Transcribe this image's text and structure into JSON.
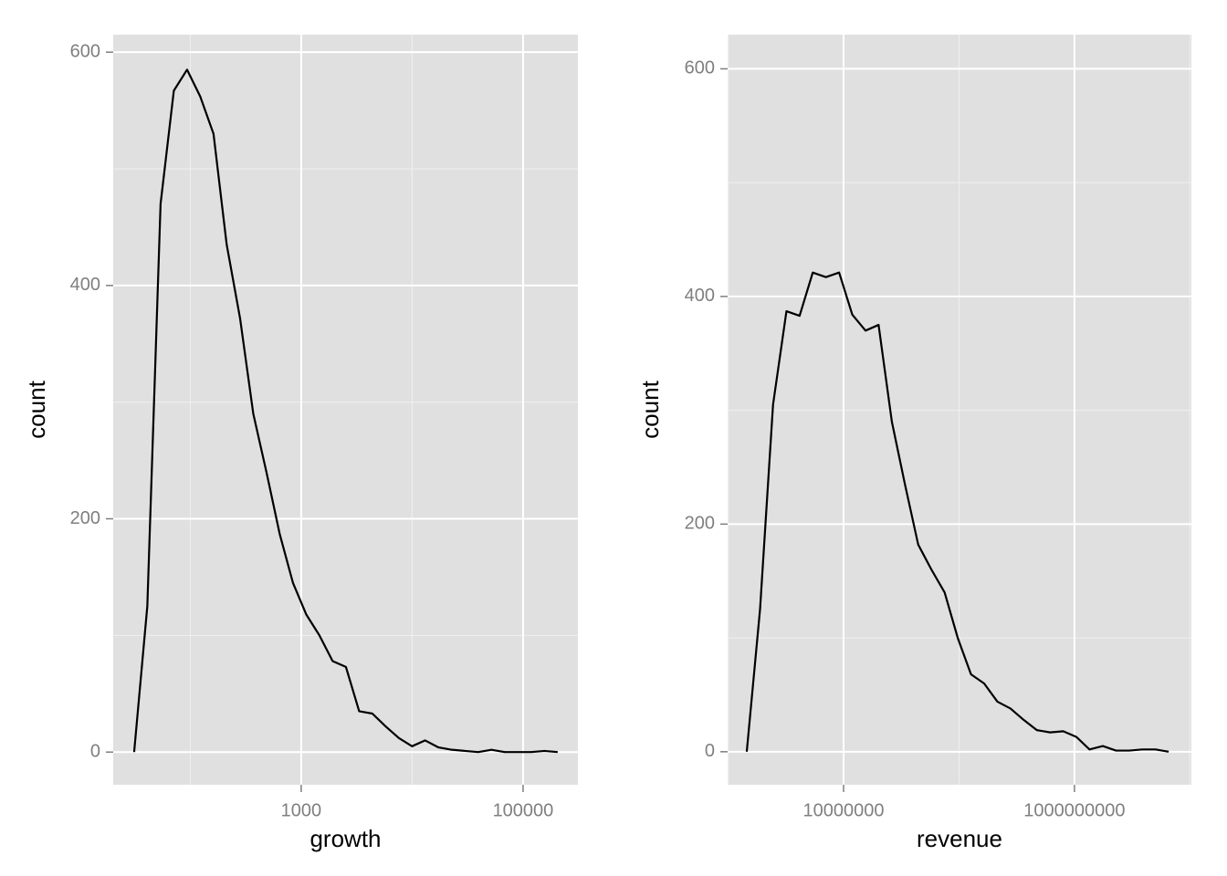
{
  "chart_data": [
    {
      "type": "line",
      "x_label": "growth",
      "y_label": "count",
      "log_x": true,
      "grid": true,
      "minor_grid": true,
      "color": "#000000",
      "x": [
        31.2,
        41,
        54,
        71.1,
        93.6,
        123,
        162,
        213,
        281,
        370,
        486,
        640,
        843,
        1110,
        1460,
        1920,
        2530,
        3330,
        4380,
        5770,
        7590,
        9980,
        13100,
        17300,
        22800,
        30000,
        39400,
        51900,
        68300,
        89900,
        118000,
        156000,
        205000
      ],
      "values": [
        0,
        125,
        470,
        567,
        585,
        562,
        530,
        435,
        372,
        290,
        240,
        187,
        145,
        118,
        100,
        78,
        73,
        35,
        33,
        22,
        12,
        5,
        10,
        4,
        2,
        1,
        0,
        2,
        0,
        0,
        0,
        1,
        0
      ],
      "xlim": [
        20.2,
        312000
      ],
      "xticks": [
        1000,
        100000
      ],
      "ylim": [
        -28,
        615
      ],
      "yticks": [
        0,
        200,
        400,
        600
      ]
    },
    {
      "type": "line",
      "x_label": "revenue",
      "y_label": "count",
      "log_x": true,
      "grid": true,
      "minor_grid": true,
      "color": "#000000",
      "x": [
        1450000,
        1890000,
        2450000,
        3200000,
        4160000,
        5410000,
        7030000,
        9150000,
        11900000,
        15500000,
        20100000,
        26200000,
        34000000,
        44300000,
        57700000,
        75000000,
        97500000,
        127000000,
        165000000,
        215000000,
        279000000,
        363000000,
        472000000,
        615000000,
        800000000,
        1040000000,
        1350000000,
        1760000000,
        2290000000,
        2980000000,
        3870000000,
        5040000000,
        6550000000
      ],
      "values": [
        0,
        125,
        305,
        387,
        383,
        421,
        417,
        421,
        384,
        370,
        375,
        290,
        235,
        182,
        160,
        140,
        100,
        68,
        60,
        44,
        38,
        28,
        19,
        17,
        18,
        13,
        2,
        5,
        1,
        1,
        2,
        2,
        0
      ],
      "xlim": [
        990000,
        10300000000
      ],
      "xticks": [
        10000000,
        1000000000
      ],
      "ylim": [
        -29,
        630
      ],
      "yticks": [
        0,
        200,
        400,
        600
      ]
    }
  ]
}
